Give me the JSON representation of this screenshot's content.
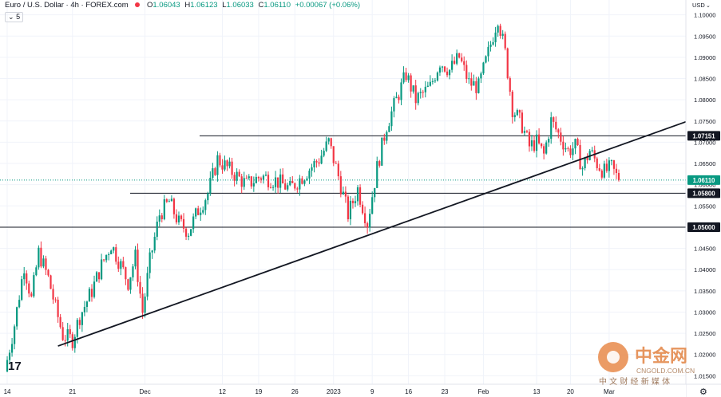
{
  "header": {
    "symbol": "Euro / U.S. Dollar · 4h · FOREX.com",
    "open_key": "O",
    "open": "1.06043",
    "high_key": "H",
    "high": "1.06123",
    "low_key": "L",
    "low": "1.06033",
    "close_key": "C",
    "close": "1.06110",
    "change": "+0.00067 (+0.06%)",
    "interval_badge": "5"
  },
  "price_axis": {
    "currency": "USD",
    "ticks": [
      "1.10000",
      "1.09500",
      "1.09000",
      "1.08500",
      "1.08000",
      "1.07500",
      "1.07000",
      "1.06500",
      "1.06000",
      "1.05500",
      "1.04500",
      "1.04000",
      "1.03500",
      "1.03000",
      "1.02500",
      "1.02000",
      "1.01500"
    ],
    "labels": [
      {
        "text": "1.07151",
        "value": 1.07151,
        "style": "line"
      },
      {
        "text": "1.06110",
        "value": 1.0611,
        "style": "current"
      },
      {
        "text": "1.05800",
        "value": 1.058,
        "style": "line"
      },
      {
        "text": "1.05000",
        "value": 1.05,
        "style": "line"
      }
    ]
  },
  "time_axis": {
    "ticks": [
      {
        "label": "14",
        "t": 0.5
      },
      {
        "label": "21",
        "t": 14
      },
      {
        "label": "Dec",
        "t": 29
      },
      {
        "label": "12",
        "t": 45
      },
      {
        "label": "19",
        "t": 52.5
      },
      {
        "label": "26",
        "t": 60
      },
      {
        "label": "2023",
        "t": 68
      },
      {
        "label": "9",
        "t": 76
      },
      {
        "label": "16",
        "t": 83.5
      },
      {
        "label": "23",
        "t": 91
      },
      {
        "label": "Feb",
        "t": 99
      },
      {
        "label": "13",
        "t": 110
      },
      {
        "label": "20",
        "t": 117
      },
      {
        "label": "Mar",
        "t": 125
      }
    ]
  },
  "watermark": {
    "brand": "中金网",
    "site": "CNGOLD.COM.CN",
    "tagline": "中 文 财 经 新 媒 体"
  },
  "tv_logo": "17",
  "colors": {
    "up": "#089981",
    "down": "#f23645",
    "line": "#131722",
    "grid": "#f0f3fa"
  },
  "chart_data": {
    "type": "candlestick",
    "title": "Euro / U.S. Dollar · 4h · FOREX.com",
    "ylabel": "USD",
    "ylim": [
      1.013,
      1.1035
    ],
    "horizontal_levels": [
      1.07151,
      1.058,
      1.05
    ],
    "trendline": {
      "from": {
        "t": 11,
        "price": 1.022
      },
      "to": {
        "t": 145,
        "price": 1.0765
      }
    },
    "current_price": 1.0611,
    "price_path": [
      {
        "t": 0,
        "price": 1.016
      },
      {
        "t": 2,
        "price": 1.027
      },
      {
        "t": 4,
        "price": 1.041
      },
      {
        "t": 5.5,
        "price": 1.033
      },
      {
        "t": 7,
        "price": 1.044
      },
      {
        "t": 9,
        "price": 1.038
      },
      {
        "t": 10.5,
        "price": 1.031
      },
      {
        "t": 12,
        "price": 1.0245
      },
      {
        "t": 14,
        "price": 1.0235
      },
      {
        "t": 15.5,
        "price": 1.029
      },
      {
        "t": 18,
        "price": 1.035
      },
      {
        "t": 20,
        "price": 1.041
      },
      {
        "t": 22,
        "price": 1.046
      },
      {
        "t": 24,
        "price": 1.041
      },
      {
        "t": 25.5,
        "price": 1.037
      },
      {
        "t": 27,
        "price": 1.043
      },
      {
        "t": 28.5,
        "price": 1.03
      },
      {
        "t": 30,
        "price": 1.042
      },
      {
        "t": 32,
        "price": 1.053
      },
      {
        "t": 34,
        "price": 1.056
      },
      {
        "t": 36,
        "price": 1.051
      },
      {
        "t": 38,
        "price": 1.049
      },
      {
        "t": 40,
        "price": 1.054
      },
      {
        "t": 42,
        "price": 1.058
      },
      {
        "t": 44,
        "price": 1.066
      },
      {
        "t": 46,
        "price": 1.064
      },
      {
        "t": 47.5,
        "price": 1.0625
      },
      {
        "t": 50,
        "price": 1.06
      },
      {
        "t": 53,
        "price": 1.062
      },
      {
        "t": 56,
        "price": 1.061
      },
      {
        "t": 59,
        "price": 1.059
      },
      {
        "t": 62,
        "price": 1.0625
      },
      {
        "t": 65,
        "price": 1.066
      },
      {
        "t": 67,
        "price": 1.07
      },
      {
        "t": 69,
        "price": 1.062
      },
      {
        "t": 71,
        "price": 1.053
      },
      {
        "t": 73,
        "price": 1.059
      },
      {
        "t": 75,
        "price": 1.051
      },
      {
        "t": 77,
        "price": 1.064
      },
      {
        "t": 79,
        "price": 1.074
      },
      {
        "t": 81,
        "price": 1.08
      },
      {
        "t": 83,
        "price": 1.086
      },
      {
        "t": 85,
        "price": 1.08
      },
      {
        "t": 88,
        "price": 1.083
      },
      {
        "t": 90,
        "price": 1.089
      },
      {
        "t": 92,
        "price": 1.087
      },
      {
        "t": 94,
        "price": 1.09
      },
      {
        "t": 96,
        "price": 1.084
      },
      {
        "t": 98,
        "price": 1.083
      },
      {
        "t": 100,
        "price": 1.091
      },
      {
        "t": 102,
        "price": 1.0995
      },
      {
        "t": 103.5,
        "price": 1.091
      },
      {
        "t": 105,
        "price": 1.078
      },
      {
        "t": 107,
        "price": 1.074
      },
      {
        "t": 108.5,
        "price": 1.069
      },
      {
        "t": 110,
        "price": 1.07
      },
      {
        "t": 111.5,
        "price": 1.067
      },
      {
        "t": 113,
        "price": 1.075
      },
      {
        "t": 115,
        "price": 1.071
      },
      {
        "t": 116.5,
        "price": 1.068
      },
      {
        "t": 118,
        "price": 1.069
      },
      {
        "t": 119.5,
        "price": 1.064
      },
      {
        "t": 121,
        "price": 1.068
      },
      {
        "t": 122.5,
        "price": 1.065
      },
      {
        "t": 124,
        "price": 1.063
      },
      {
        "t": 125.5,
        "price": 1.064
      },
      {
        "t": 127,
        "price": 1.061
      }
    ]
  }
}
